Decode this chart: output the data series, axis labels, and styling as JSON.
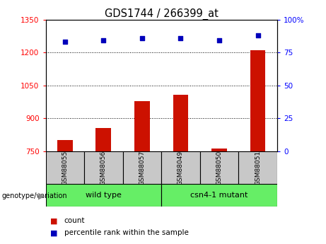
{
  "title": "GDS1744 / 266399_at",
  "categories": [
    "GSM88055",
    "GSM88056",
    "GSM88057",
    "GSM88049",
    "GSM88050",
    "GSM88051"
  ],
  "count_values": [
    800,
    855,
    978,
    1008,
    763,
    1210
  ],
  "percentile_values": [
    83,
    84,
    86,
    86,
    84,
    88
  ],
  "ylim_left": [
    750,
    1350
  ],
  "ylim_right": [
    0,
    100
  ],
  "yticks_left": [
    750,
    900,
    1050,
    1200,
    1350
  ],
  "yticks_right": [
    0,
    25,
    50,
    75,
    100
  ],
  "bar_color": "#cc1100",
  "dot_color": "#0000bb",
  "bar_width": 0.4,
  "group_labels": [
    "wild type",
    "csn4-1 mutant"
  ],
  "group_ranges": [
    [
      0,
      3
    ],
    [
      3,
      6
    ]
  ],
  "group_color": "#66ee66",
  "sample_box_color": "#c8c8c8",
  "legend_count_label": "count",
  "legend_percentile_label": "percentile rank within the sample",
  "genotype_label": "genotype/variation"
}
